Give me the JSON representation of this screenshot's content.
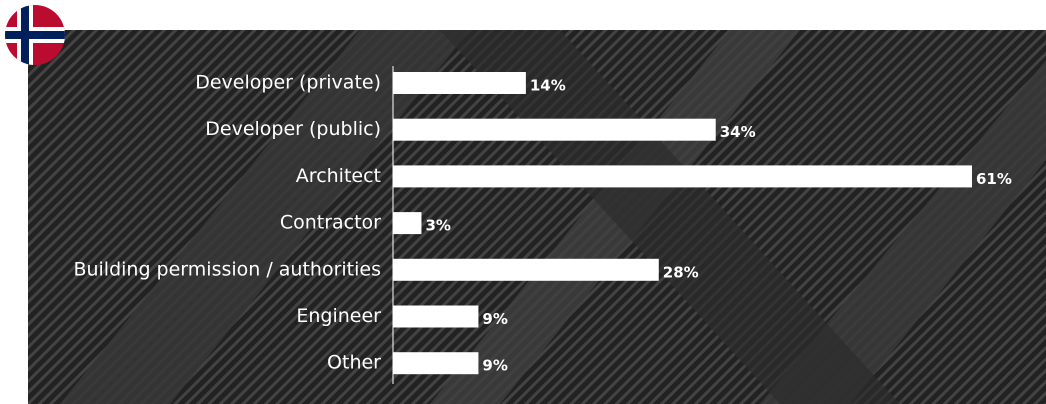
{
  "chart_data": {
    "type": "bar",
    "orientation": "horizontal",
    "categories": [
      "Developer (private)",
      "Developer (public)",
      "Architect",
      "Contractor",
      "Building permission / authorities",
      "Engineer",
      "Other"
    ],
    "values": [
      14,
      34,
      61,
      3,
      28,
      9,
      9
    ],
    "value_labels": [
      "14%",
      "34%",
      "61%",
      "3%",
      "28%",
      "9%",
      "9%"
    ],
    "color": "#ffffff"
  }
}
